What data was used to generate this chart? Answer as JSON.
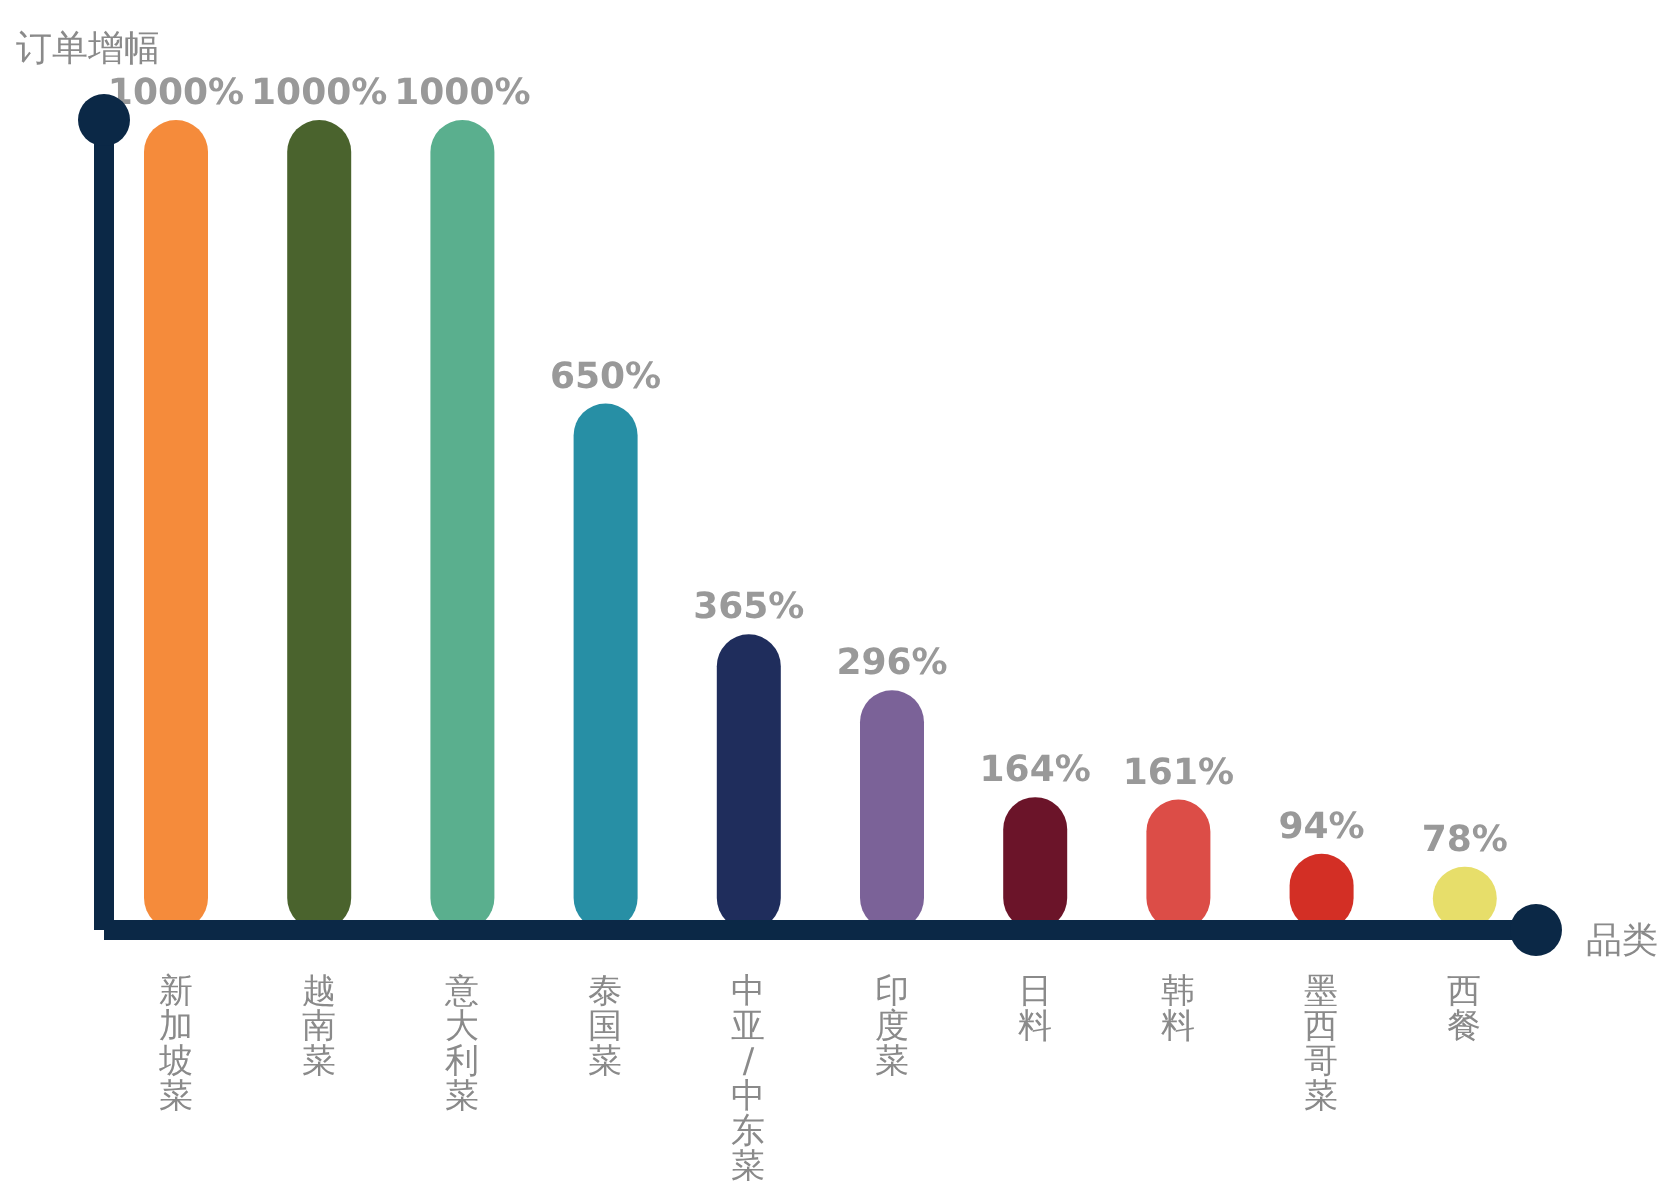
{
  "chart_data": {
    "type": "bar",
    "ylabel": "订单增幅",
    "xlabel": "品类",
    "categories": [
      "新加坡菜",
      "越南菜",
      "意大利菜",
      "泰国菜",
      "中亚/中东菜",
      "印度菜",
      "日料",
      "韩料",
      "墨西哥菜",
      "西餐"
    ],
    "values": [
      1000,
      1000,
      1000,
      650,
      365,
      296,
      164,
      161,
      94,
      78
    ],
    "colors": [
      "#f58b3b",
      "#4a632d",
      "#5aaf8e",
      "#278fa5",
      "#1f2d5c",
      "#7b6298",
      "#6b1429",
      "#dc4d47",
      "#d32f25",
      "#e7de6a"
    ],
    "value_labels": [
      "1000%",
      "1000%",
      "1000%",
      "650%",
      "365%",
      "296%",
      "164%",
      "161%",
      "94%",
      "78%"
    ],
    "tick_labels": "x"
  }
}
